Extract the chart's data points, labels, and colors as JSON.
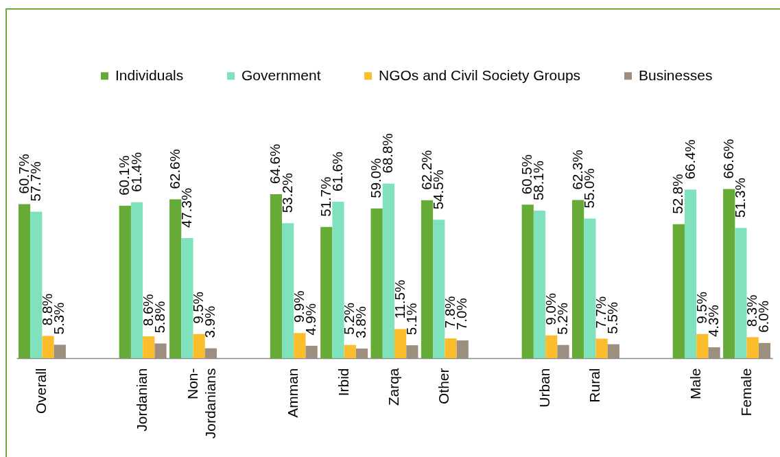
{
  "chart_data": {
    "type": "bar",
    "categories": [
      "Overall",
      null,
      "Jordanian",
      "Non-Jordanians",
      null,
      "Amman",
      "Irbid",
      "Zarqa",
      "Other",
      null,
      "Urban",
      "Rural",
      null,
      "Male",
      "Female"
    ],
    "series": [
      {
        "name": "Individuals",
        "color": "#66aa38",
        "values": [
          60.7,
          null,
          60.1,
          62.6,
          null,
          64.6,
          51.7,
          59.0,
          62.2,
          null,
          60.5,
          62.3,
          null,
          52.8,
          66.6
        ],
        "value_labels": [
          "60.7%",
          null,
          "60.1%",
          "62.6%",
          null,
          "64.6%",
          "51.7%",
          "59.0%",
          "62.2%",
          null,
          "60.5%",
          "62.3%",
          null,
          "52.8%",
          "66.6%"
        ]
      },
      {
        "name": "Government",
        "color": "#80e2bc",
        "values": [
          57.7,
          null,
          61.4,
          47.3,
          null,
          53.2,
          61.6,
          68.8,
          54.5,
          null,
          58.1,
          55.0,
          null,
          66.4,
          51.3
        ],
        "value_labels": [
          "57.7%",
          null,
          "61.4%",
          "47.3%",
          null,
          "53.2%",
          "61.6%",
          "68.8%",
          "54.5%",
          null,
          "58.1%",
          "55.0%",
          null,
          "66.4%",
          "51.3%"
        ]
      },
      {
        "name": "NGOs and Civil Society Groups",
        "color": "#fbbd2c",
        "values": [
          8.8,
          null,
          8.6,
          9.5,
          null,
          9.9,
          5.2,
          11.5,
          7.8,
          null,
          9.0,
          7.7,
          null,
          9.5,
          8.3
        ],
        "value_labels": [
          "8.8%",
          null,
          "8.6%",
          "9.5%",
          null,
          "9.9%",
          "5.2%",
          "11.5%",
          "7.8%",
          null,
          "9.0%",
          "7.7%",
          null,
          "9.5%",
          "8.3%"
        ]
      },
      {
        "name": "Businesses",
        "color": "#9c8f80",
        "values": [
          5.3,
          null,
          5.8,
          3.9,
          null,
          4.9,
          3.8,
          5.1,
          7.0,
          null,
          5.2,
          5.5,
          null,
          4.3,
          6.0
        ],
        "value_labels": [
          "5.3%",
          null,
          "5.8%",
          "3.9%",
          null,
          "4.9%",
          "3.8%",
          "5.1%",
          "7.0%",
          null,
          "5.2%",
          "5.5%",
          null,
          "4.3%",
          "6.0%"
        ]
      }
    ],
    "legend": "top"
  }
}
